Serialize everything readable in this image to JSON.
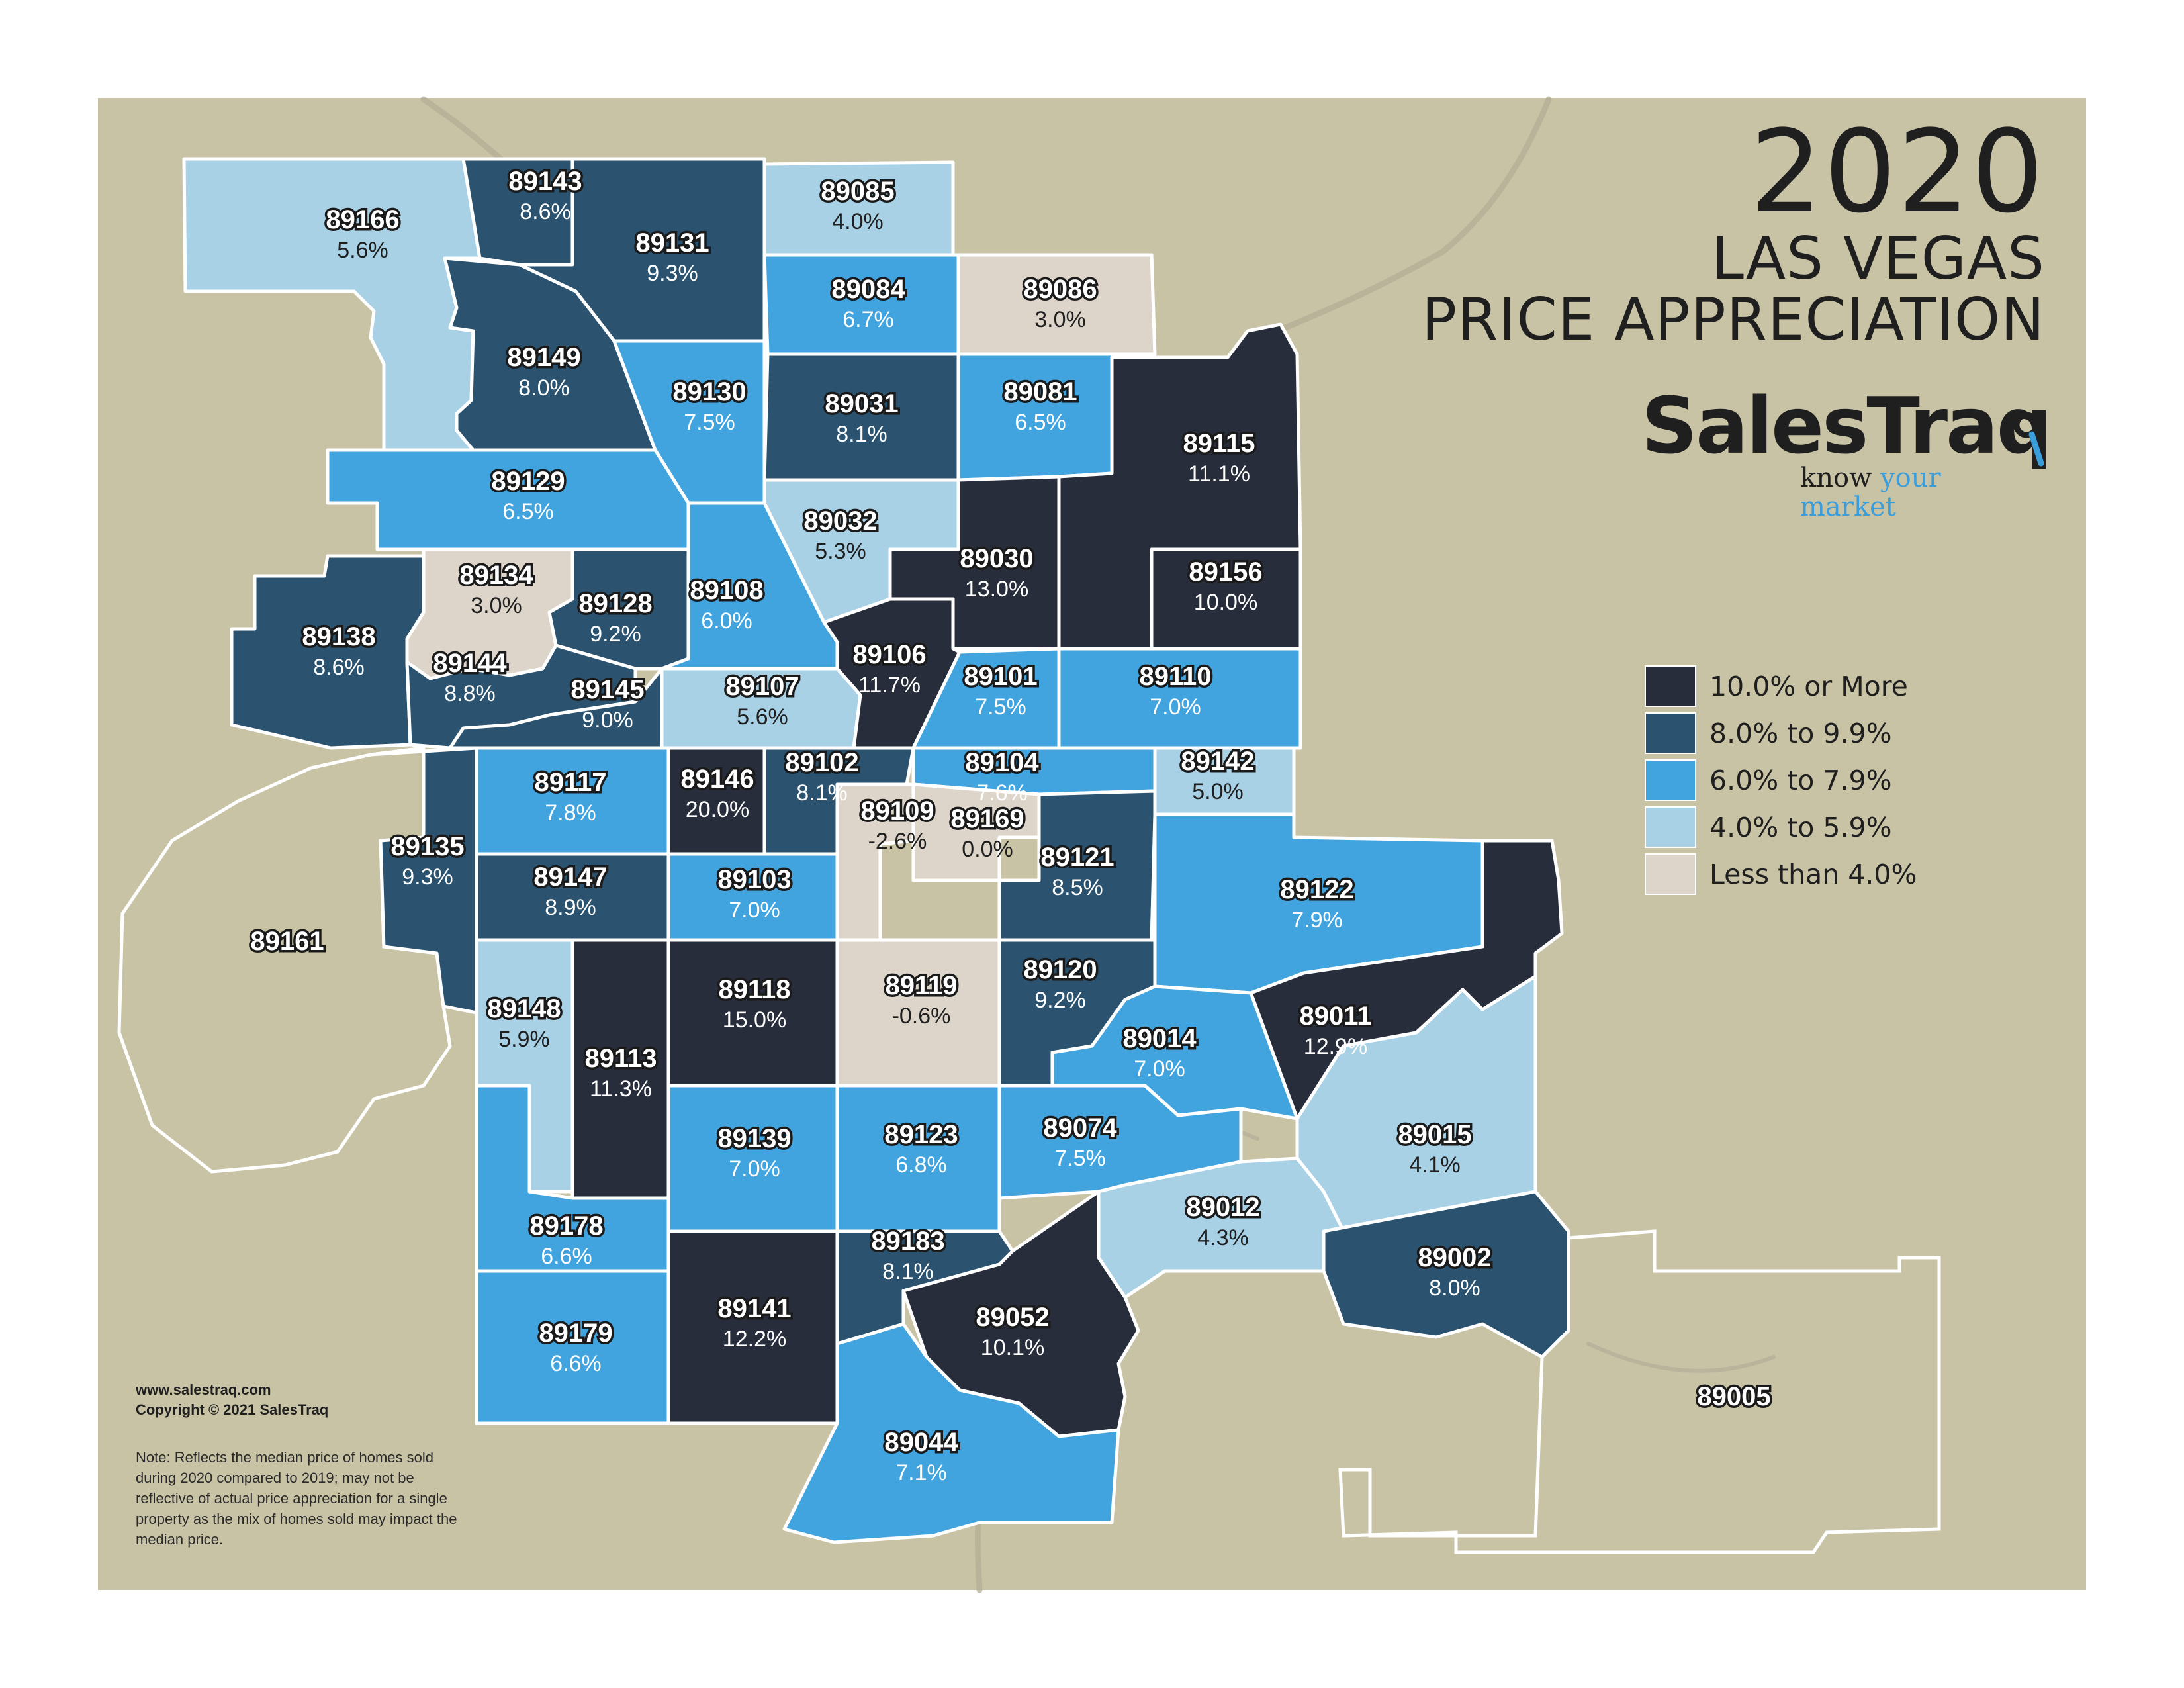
{
  "title": {
    "year": "2020",
    "line1": "LAS VEGAS",
    "line2": "PRICE APPRECIATION"
  },
  "brand": {
    "name": "SalesTraq",
    "tagline_part1": "know",
    "tagline_part2": "your market"
  },
  "colors": {
    "background": "#c9c3a6",
    "tier_10_plus": "#272d3b",
    "tier_8_to_9_9": "#2b536f",
    "tier_6_to_7_9": "#41a4de",
    "tier_4_to_5_9": "#a8d1e6",
    "tier_under_4": "#ddd5c9"
  },
  "legend": [
    {
      "label": "10.0% or More",
      "color": "#272d3b"
    },
    {
      "label": "8.0% to 9.9%",
      "color": "#2b536f"
    },
    {
      "label": "6.0% to 7.9%",
      "color": "#41a4de"
    },
    {
      "label": "4.0% to 5.9%",
      "color": "#a8d1e6"
    },
    {
      "label": "Less than 4.0%",
      "color": "#ddd5c9"
    }
  ],
  "credits": {
    "website": "www.salestraq.com",
    "copyright": "Copyright © 2021 SalesTraq"
  },
  "note": "Note: Reflects the median price of homes sold during 2020 compared to 2019; may not be reflective of actual price appreciation for a single property as the mix of homes sold may impact the median price.",
  "zips": [
    {
      "zip": "89166",
      "pct": "5.6%",
      "value": 5.6,
      "tier": "tier_4_to_5_9"
    },
    {
      "zip": "89143",
      "pct": "8.6%",
      "value": 8.6,
      "tier": "tier_8_to_9_9"
    },
    {
      "zip": "89131",
      "pct": "9.3%",
      "value": 9.3,
      "tier": "tier_8_to_9_9"
    },
    {
      "zip": "89085",
      "pct": "4.0%",
      "value": 4.0,
      "tier": "tier_4_to_5_9"
    },
    {
      "zip": "89084",
      "pct": "6.7%",
      "value": 6.7,
      "tier": "tier_6_to_7_9"
    },
    {
      "zip": "89086",
      "pct": "3.0%",
      "value": 3.0,
      "tier": "tier_under_4"
    },
    {
      "zip": "89149",
      "pct": "8.0%",
      "value": 8.0,
      "tier": "tier_8_to_9_9"
    },
    {
      "zip": "89130",
      "pct": "7.5%",
      "value": 7.5,
      "tier": "tier_6_to_7_9"
    },
    {
      "zip": "89031",
      "pct": "8.1%",
      "value": 8.1,
      "tier": "tier_8_to_9_9"
    },
    {
      "zip": "89081",
      "pct": "6.5%",
      "value": 6.5,
      "tier": "tier_6_to_7_9"
    },
    {
      "zip": "89115",
      "pct": "11.1%",
      "value": 11.1,
      "tier": "tier_10_plus"
    },
    {
      "zip": "89129",
      "pct": "6.5%",
      "value": 6.5,
      "tier": "tier_6_to_7_9"
    },
    {
      "zip": "89032",
      "pct": "5.3%",
      "value": 5.3,
      "tier": "tier_4_to_5_9"
    },
    {
      "zip": "89030",
      "pct": "13.0%",
      "value": 13.0,
      "tier": "tier_10_plus"
    },
    {
      "zip": "89156",
      "pct": "10.0%",
      "value": 10.0,
      "tier": "tier_10_plus"
    },
    {
      "zip": "89134",
      "pct": "3.0%",
      "value": 3.0,
      "tier": "tier_under_4"
    },
    {
      "zip": "89128",
      "pct": "9.2%",
      "value": 9.2,
      "tier": "tier_8_to_9_9"
    },
    {
      "zip": "89108",
      "pct": "6.0%",
      "value": 6.0,
      "tier": "tier_6_to_7_9"
    },
    {
      "zip": "89138",
      "pct": "8.6%",
      "value": 8.6,
      "tier": "tier_8_to_9_9"
    },
    {
      "zip": "89144",
      "pct": "8.8%",
      "value": 8.8,
      "tier": "tier_8_to_9_9"
    },
    {
      "zip": "89145",
      "pct": "9.0%",
      "value": 9.0,
      "tier": "tier_8_to_9_9"
    },
    {
      "zip": "89107",
      "pct": "5.6%",
      "value": 5.6,
      "tier": "tier_4_to_5_9"
    },
    {
      "zip": "89106",
      "pct": "11.7%",
      "value": 11.7,
      "tier": "tier_10_plus"
    },
    {
      "zip": "89101",
      "pct": "7.5%",
      "value": 7.5,
      "tier": "tier_6_to_7_9"
    },
    {
      "zip": "89110",
      "pct": "7.0%",
      "value": 7.0,
      "tier": "tier_6_to_7_9"
    },
    {
      "zip": "89117",
      "pct": "7.8%",
      "value": 7.8,
      "tier": "tier_6_to_7_9"
    },
    {
      "zip": "89146",
      "pct": "20.0%",
      "value": 20.0,
      "tier": "tier_10_plus"
    },
    {
      "zip": "89102",
      "pct": "8.1%",
      "value": 8.1,
      "tier": "tier_8_to_9_9"
    },
    {
      "zip": "89104",
      "pct": "7.6%",
      "value": 7.6,
      "tier": "tier_6_to_7_9"
    },
    {
      "zip": "89142",
      "pct": "5.0%",
      "value": 5.0,
      "tier": "tier_4_to_5_9"
    },
    {
      "zip": "89135",
      "pct": "9.3%",
      "value": 9.3,
      "tier": "tier_8_to_9_9"
    },
    {
      "zip": "89109",
      "pct": "-2.6%",
      "value": -2.6,
      "tier": "tier_under_4"
    },
    {
      "zip": "89169",
      "pct": "0.0%",
      "value": 0.0,
      "tier": "tier_under_4"
    },
    {
      "zip": "89121",
      "pct": "8.5%",
      "value": 8.5,
      "tier": "tier_8_to_9_9"
    },
    {
      "zip": "89147",
      "pct": "8.9%",
      "value": 8.9,
      "tier": "tier_8_to_9_9"
    },
    {
      "zip": "89103",
      "pct": "7.0%",
      "value": 7.0,
      "tier": "tier_6_to_7_9"
    },
    {
      "zip": "89122",
      "pct": "7.9%",
      "value": 7.9,
      "tier": "tier_6_to_7_9"
    },
    {
      "zip": "89161",
      "pct": "",
      "value": null,
      "tier": "none"
    },
    {
      "zip": "89148",
      "pct": "5.9%",
      "value": 5.9,
      "tier": "tier_4_to_5_9"
    },
    {
      "zip": "89113",
      "pct": "11.3%",
      "value": 11.3,
      "tier": "tier_10_plus"
    },
    {
      "zip": "89118",
      "pct": "15.0%",
      "value": 15.0,
      "tier": "tier_10_plus"
    },
    {
      "zip": "89119",
      "pct": "-0.6%",
      "value": -0.6,
      "tier": "tier_under_4"
    },
    {
      "zip": "89120",
      "pct": "9.2%",
      "value": 9.2,
      "tier": "tier_8_to_9_9"
    },
    {
      "zip": "89011",
      "pct": "12.9%",
      "value": 12.9,
      "tier": "tier_10_plus"
    },
    {
      "zip": "89014",
      "pct": "7.0%",
      "value": 7.0,
      "tier": "tier_6_to_7_9"
    },
    {
      "zip": "89139",
      "pct": "7.0%",
      "value": 7.0,
      "tier": "tier_6_to_7_9"
    },
    {
      "zip": "89123",
      "pct": "6.8%",
      "value": 6.8,
      "tier": "tier_6_to_7_9"
    },
    {
      "zip": "89074",
      "pct": "7.5%",
      "value": 7.5,
      "tier": "tier_6_to_7_9"
    },
    {
      "zip": "89015",
      "pct": "4.1%",
      "value": 4.1,
      "tier": "tier_4_to_5_9"
    },
    {
      "zip": "89178",
      "pct": "6.6%",
      "value": 6.6,
      "tier": "tier_6_to_7_9"
    },
    {
      "zip": "89183",
      "pct": "8.1%",
      "value": 8.1,
      "tier": "tier_8_to_9_9"
    },
    {
      "zip": "89012",
      "pct": "4.3%",
      "value": 4.3,
      "tier": "tier_4_to_5_9"
    },
    {
      "zip": "89002",
      "pct": "8.0%",
      "value": 8.0,
      "tier": "tier_8_to_9_9"
    },
    {
      "zip": "89179",
      "pct": "6.6%",
      "value": 6.6,
      "tier": "tier_6_to_7_9"
    },
    {
      "zip": "89141",
      "pct": "12.2%",
      "value": 12.2,
      "tier": "tier_10_plus"
    },
    {
      "zip": "89052",
      "pct": "10.1%",
      "value": 10.1,
      "tier": "tier_10_plus"
    },
    {
      "zip": "89005",
      "pct": "",
      "value": null,
      "tier": "none"
    },
    {
      "zip": "89044",
      "pct": "7.1%",
      "value": 7.1,
      "tier": "tier_6_to_7_9"
    }
  ]
}
